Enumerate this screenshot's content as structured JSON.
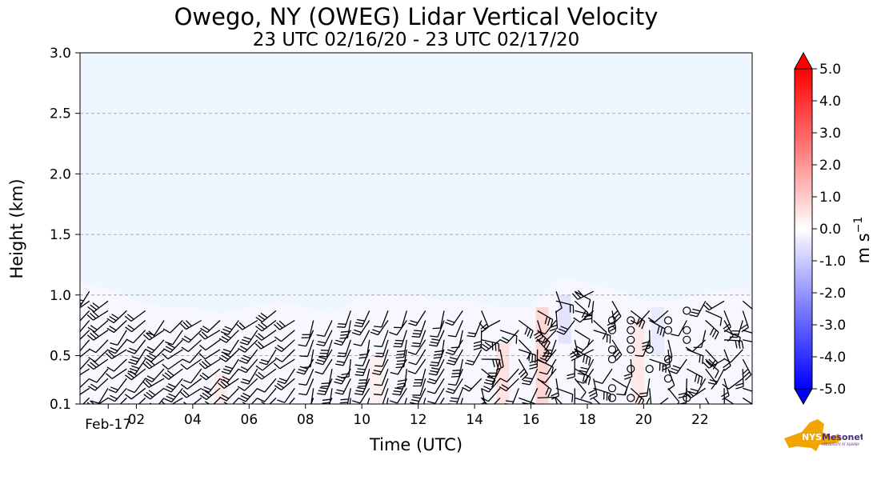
{
  "chart_data": {
    "type": "heatmap",
    "title": "Owego, NY (OWEG) Lidar Vertical Velocity",
    "subtitle": "23 UTC 02/16/20 - 23 UTC 02/17/20",
    "xlabel": "Time (UTC)",
    "ylabel": "Height (km)",
    "x_ticks": [
      {
        "hour": 1,
        "label": "Feb-17"
      },
      {
        "hour": 2,
        "label": "02"
      },
      {
        "hour": 4,
        "label": "04"
      },
      {
        "hour": 6,
        "label": "06"
      },
      {
        "hour": 8,
        "label": "08"
      },
      {
        "hour": 10,
        "label": "10"
      },
      {
        "hour": 12,
        "label": "12"
      },
      {
        "hour": 14,
        "label": "14"
      },
      {
        "hour": 16,
        "label": "16"
      },
      {
        "hour": 18,
        "label": "18"
      },
      {
        "hour": 20,
        "label": "20"
      },
      {
        "hour": 22,
        "label": "22"
      }
    ],
    "xlim_hours": [
      0,
      23.85
    ],
    "y_ticks": [
      0.1,
      0.5,
      1.0,
      1.5,
      2.0,
      2.5,
      3.0
    ],
    "y_tick_labels": [
      "0.1",
      "0.5",
      "1.0",
      "1.5",
      "2.0",
      "2.5",
      "3.0"
    ],
    "ylim": [
      0.1,
      3.0
    ],
    "grid": "horizontal dashed",
    "data_top_km": [
      1.1,
      1.05,
      0.95,
      0.9,
      0.9,
      0.85,
      0.9,
      0.95,
      0.9,
      0.85,
      1.0,
      1.0,
      1.0,
      0.95,
      0.95,
      0.9,
      0.9,
      1.15,
      1.1,
      1.05,
      0.95,
      0.95,
      1.0,
      1.05
    ],
    "colorbar": {
      "label": "m s",
      "label_exponent": "−1",
      "min": -5.0,
      "max": 5.0,
      "ticks": [
        "5.0",
        "4.0",
        "3.0",
        "2.0",
        "1.0",
        "0.0",
        "-1.0",
        "-2.0",
        "-3.0",
        "-4.0",
        "-5.0"
      ],
      "colormap": "bwr",
      "extend": "both"
    },
    "background_color": "#eef6ff"
  },
  "logo": {
    "name": "NYS Mesonet",
    "text_nys": "NYS",
    "text_mesonet": "Mesonet",
    "text_sub": "UNIVERSITY AT ALBANY",
    "color_state": "#f0a500",
    "color_text": "#4b2e83"
  }
}
